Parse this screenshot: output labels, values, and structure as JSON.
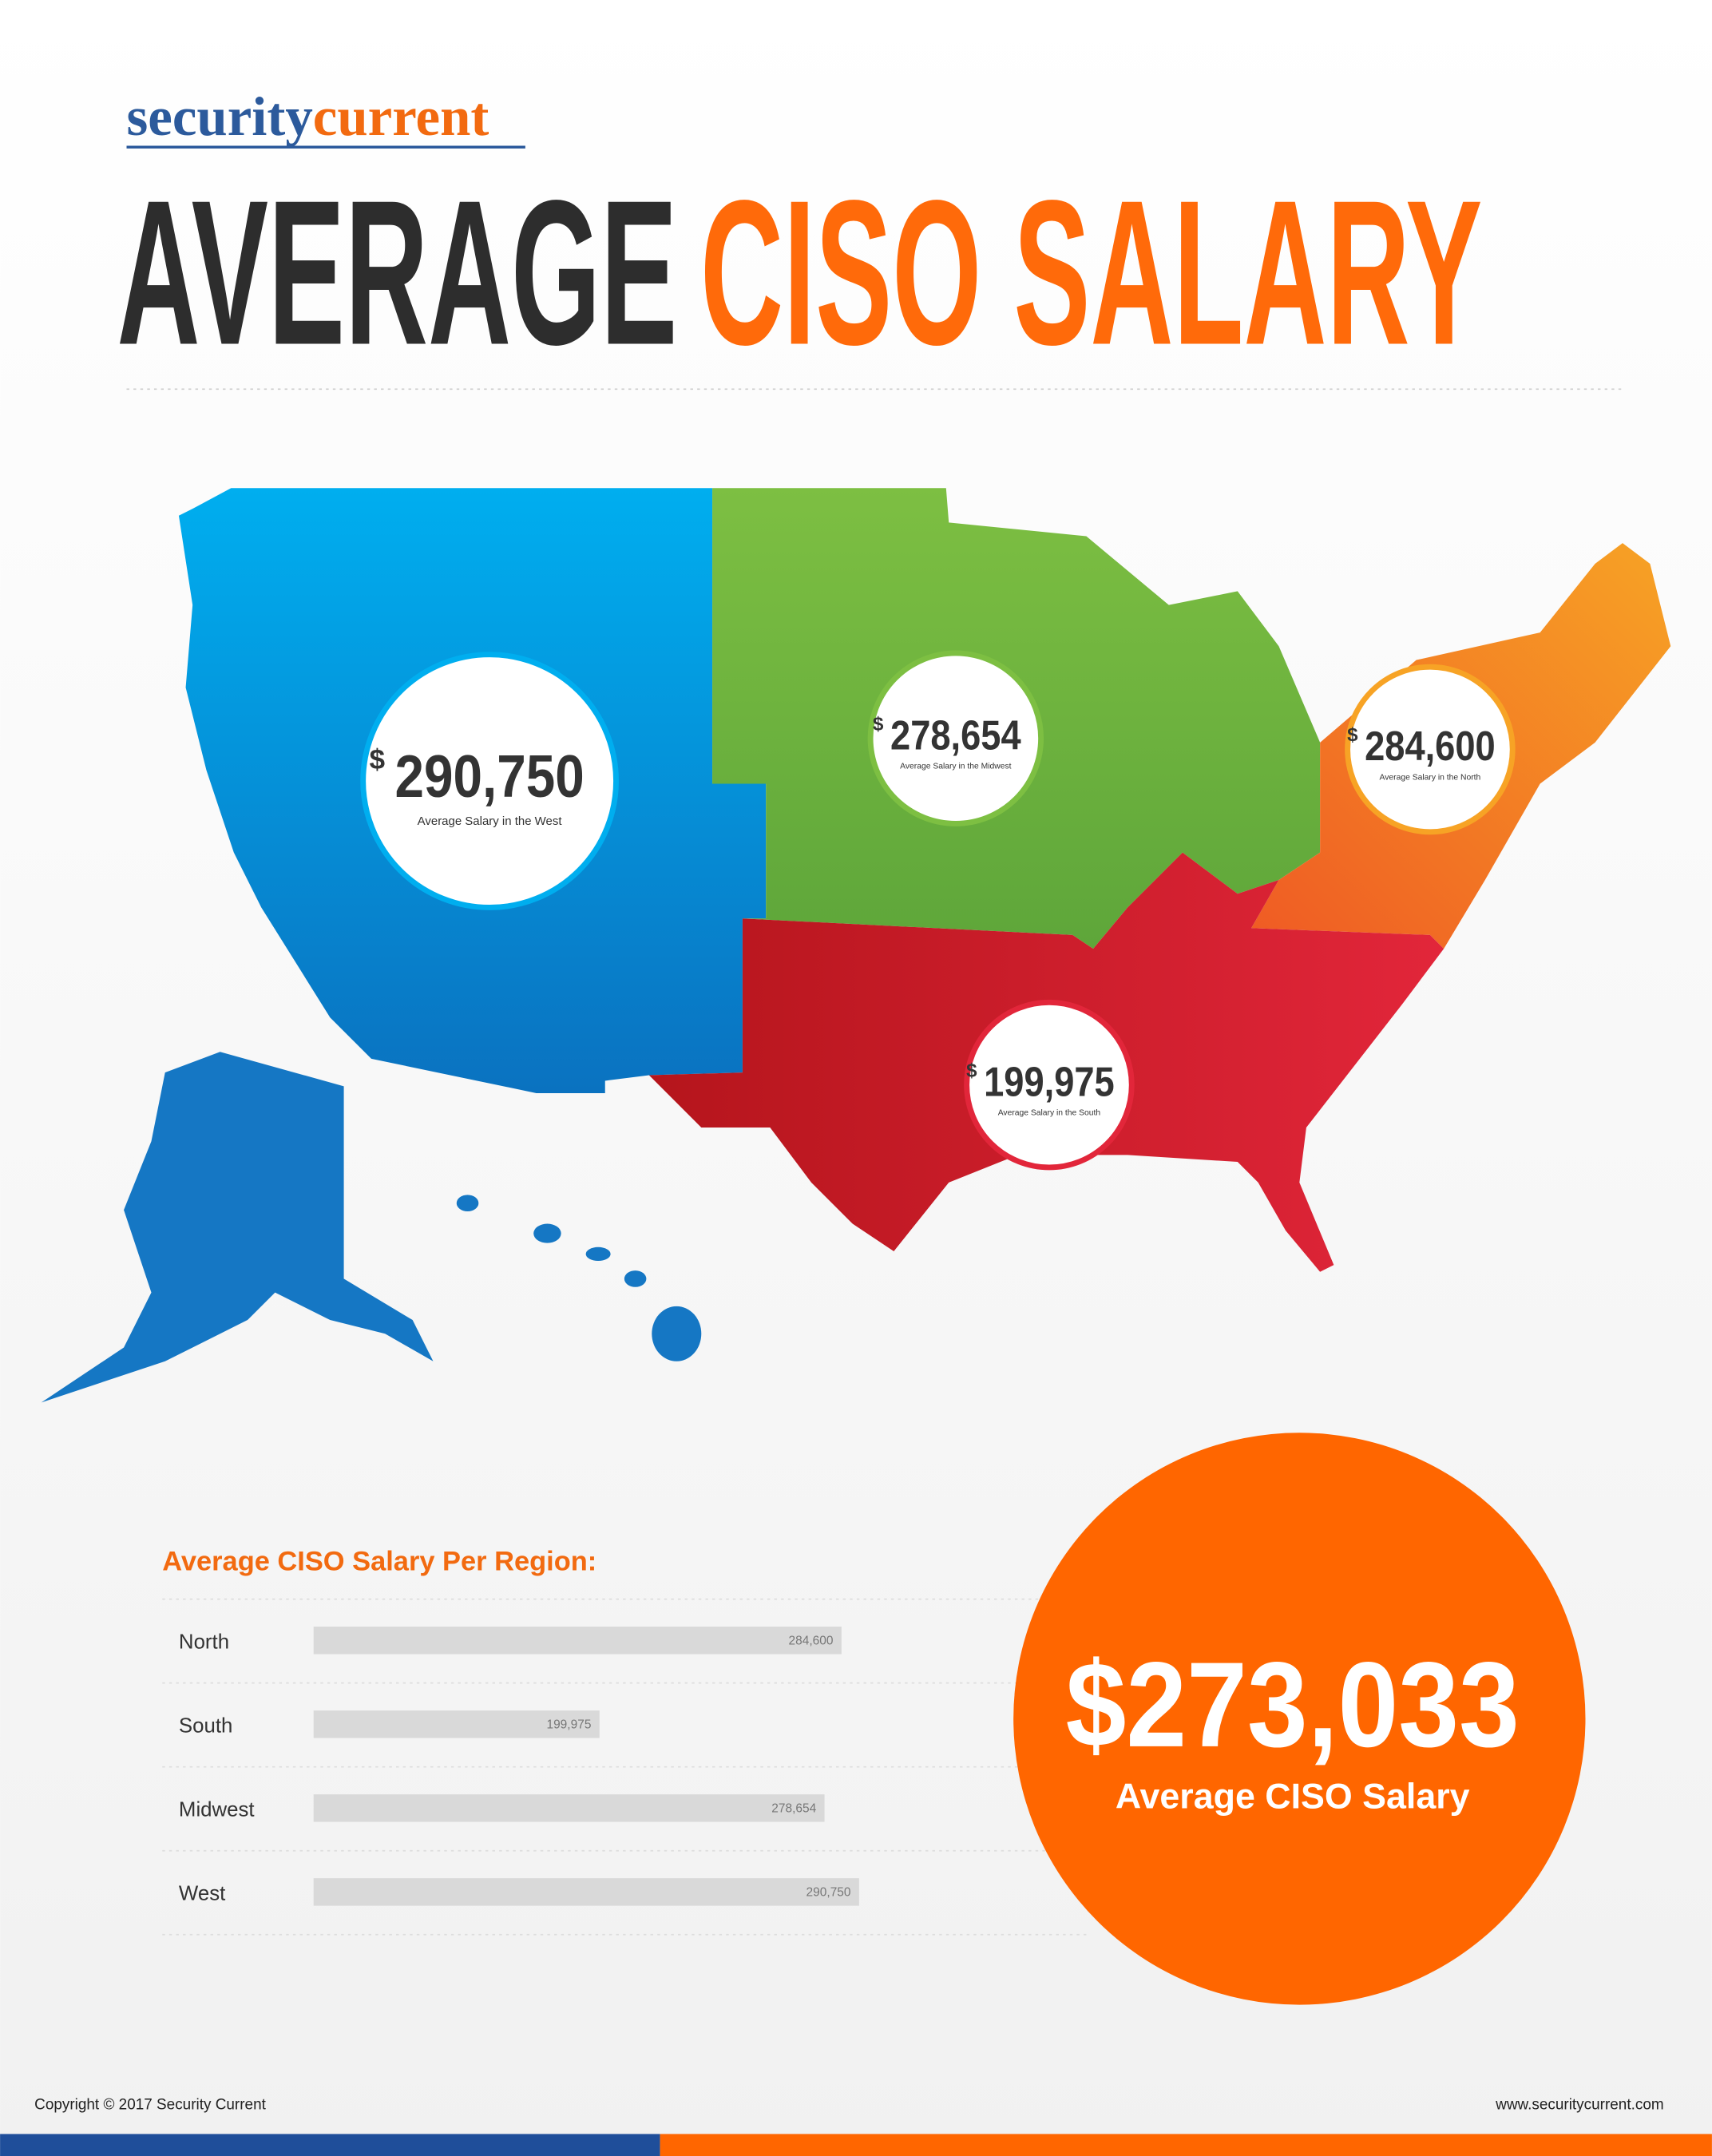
{
  "header": {
    "logo_part1": "security",
    "logo_part2": "current",
    "title_part1": "AVERAGE",
    "title_part2": "CISO SALARY"
  },
  "map": {
    "regions": [
      {
        "currency": "$",
        "amount": "290,750",
        "caption": "Average Salary in the West"
      },
      {
        "currency": "$",
        "amount": "278,654",
        "caption": "Average Salary in the Midwest"
      },
      {
        "currency": "$",
        "amount": "284,600",
        "caption": "Average Salary in the North"
      },
      {
        "currency": "$",
        "amount": "199,975",
        "caption": "Average Salary in the South"
      }
    ]
  },
  "chart_data": {
    "type": "hbar",
    "title": "Average CISO Salary Per Region:",
    "categories": [
      "North",
      "South",
      "Midwest",
      "West"
    ],
    "values": [
      284600,
      199975,
      278654,
      290750
    ],
    "value_labels": [
      "284,600",
      "199,975",
      "278,654",
      "290,750"
    ],
    "color": "#d9d9d9",
    "xlim": [
      100000,
      300000
    ]
  },
  "summary": {
    "amount": "$273,033",
    "caption": "Average CISO Salary"
  },
  "footer": {
    "copyright": "Copyright © 2017 Security Current",
    "url": "www.securitycurrent.com"
  }
}
